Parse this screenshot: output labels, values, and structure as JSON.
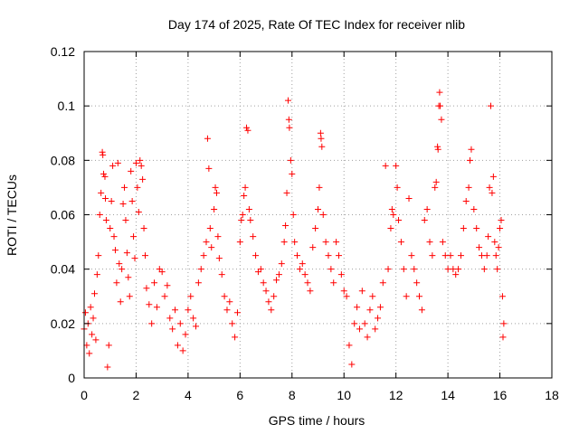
{
  "chart_data": {
    "type": "scatter",
    "title": "Day 174 of 2025, Rate Of TEC Index for receiver nlib",
    "xlabel": "GPS time / hours",
    "ylabel": "ROTI / TECUs",
    "xlim": [
      0,
      18
    ],
    "ylim": [
      0,
      0.12
    ],
    "x_ticks": [
      0,
      2,
      4,
      6,
      8,
      10,
      12,
      14,
      16,
      18
    ],
    "y_ticks": [
      0,
      0.02,
      0.04,
      0.06,
      0.08,
      0.1,
      0.12
    ],
    "x_tick_labels": [
      "0",
      "2",
      "4",
      "6",
      "8",
      "10",
      "12",
      "14",
      "16",
      "18"
    ],
    "y_tick_labels": [
      "0",
      "0.02",
      "0.04",
      "0.06",
      "0.08",
      "0.1",
      "0.12"
    ],
    "grid": true,
    "marker": "+",
    "color": "#ff0000",
    "series": [
      {
        "name": "ROTI",
        "points": [
          [
            0.0,
            0.018
          ],
          [
            0.05,
            0.024
          ],
          [
            0.1,
            0.012
          ],
          [
            0.15,
            0.02
          ],
          [
            0.2,
            0.009
          ],
          [
            0.25,
            0.026
          ],
          [
            0.3,
            0.016
          ],
          [
            0.35,
            0.022
          ],
          [
            0.4,
            0.031
          ],
          [
            0.45,
            0.014
          ],
          [
            0.5,
            0.038
          ],
          [
            0.55,
            0.045
          ],
          [
            0.6,
            0.06
          ],
          [
            0.65,
            0.068
          ],
          [
            0.7,
            0.083
          ],
          [
            0.72,
            0.082
          ],
          [
            0.75,
            0.075
          ],
          [
            0.8,
            0.074
          ],
          [
            0.82,
            0.066
          ],
          [
            0.85,
            0.058
          ],
          [
            0.9,
            0.004
          ],
          [
            0.95,
            0.012
          ],
          [
            1.0,
            0.055
          ],
          [
            1.05,
            0.065
          ],
          [
            1.1,
            0.078
          ],
          [
            1.15,
            0.052
          ],
          [
            1.2,
            0.047
          ],
          [
            1.25,
            0.035
          ],
          [
            1.3,
            0.079
          ],
          [
            1.35,
            0.042
          ],
          [
            1.4,
            0.028
          ],
          [
            1.45,
            0.04
          ],
          [
            1.5,
            0.064
          ],
          [
            1.55,
            0.07
          ],
          [
            1.6,
            0.058
          ],
          [
            1.65,
            0.046
          ],
          [
            1.7,
            0.037
          ],
          [
            1.75,
            0.03
          ],
          [
            1.8,
            0.076
          ],
          [
            1.85,
            0.065
          ],
          [
            1.9,
            0.052
          ],
          [
            1.95,
            0.044
          ],
          [
            2.0,
            0.079
          ],
          [
            2.05,
            0.07
          ],
          [
            2.1,
            0.061
          ],
          [
            2.15,
            0.08
          ],
          [
            2.2,
            0.078
          ],
          [
            2.25,
            0.073
          ],
          [
            2.3,
            0.055
          ],
          [
            2.35,
            0.045
          ],
          [
            2.4,
            0.033
          ],
          [
            2.5,
            0.027
          ],
          [
            2.6,
            0.02
          ],
          [
            2.7,
            0.035
          ],
          [
            2.8,
            0.026
          ],
          [
            2.9,
            0.04
          ],
          [
            3.0,
            0.039
          ],
          [
            3.1,
            0.03
          ],
          [
            3.2,
            0.034
          ],
          [
            3.3,
            0.022
          ],
          [
            3.4,
            0.018
          ],
          [
            3.5,
            0.025
          ],
          [
            3.6,
            0.012
          ],
          [
            3.7,
            0.02
          ],
          [
            3.8,
            0.01
          ],
          [
            3.9,
            0.016
          ],
          [
            4.0,
            0.025
          ],
          [
            4.1,
            0.03
          ],
          [
            4.2,
            0.022
          ],
          [
            4.3,
            0.019
          ],
          [
            4.4,
            0.035
          ],
          [
            4.5,
            0.04
          ],
          [
            4.6,
            0.045
          ],
          [
            4.7,
            0.05
          ],
          [
            4.75,
            0.088
          ],
          [
            4.8,
            0.077
          ],
          [
            4.85,
            0.055
          ],
          [
            4.9,
            0.048
          ],
          [
            5.0,
            0.062
          ],
          [
            5.05,
            0.07
          ],
          [
            5.1,
            0.068
          ],
          [
            5.15,
            0.052
          ],
          [
            5.2,
            0.044
          ],
          [
            5.3,
            0.038
          ],
          [
            5.4,
            0.03
          ],
          [
            5.5,
            0.025
          ],
          [
            5.6,
            0.028
          ],
          [
            5.7,
            0.02
          ],
          [
            5.8,
            0.015
          ],
          [
            5.9,
            0.024
          ],
          [
            6.0,
            0.05
          ],
          [
            6.05,
            0.058
          ],
          [
            6.1,
            0.06
          ],
          [
            6.15,
            0.067
          ],
          [
            6.2,
            0.07
          ],
          [
            6.25,
            0.092
          ],
          [
            6.3,
            0.091
          ],
          [
            6.35,
            0.062
          ],
          [
            6.4,
            0.058
          ],
          [
            6.5,
            0.052
          ],
          [
            6.6,
            0.045
          ],
          [
            6.7,
            0.039
          ],
          [
            6.8,
            0.04
          ],
          [
            6.9,
            0.035
          ],
          [
            7.0,
            0.032
          ],
          [
            7.1,
            0.028
          ],
          [
            7.2,
            0.025
          ],
          [
            7.3,
            0.03
          ],
          [
            7.4,
            0.036
          ],
          [
            7.5,
            0.038
          ],
          [
            7.6,
            0.042
          ],
          [
            7.7,
            0.05
          ],
          [
            7.75,
            0.056
          ],
          [
            7.8,
            0.068
          ],
          [
            7.85,
            0.102
          ],
          [
            7.88,
            0.095
          ],
          [
            7.9,
            0.092
          ],
          [
            7.95,
            0.08
          ],
          [
            8.0,
            0.075
          ],
          [
            8.05,
            0.06
          ],
          [
            8.1,
            0.05
          ],
          [
            8.2,
            0.045
          ],
          [
            8.3,
            0.04
          ],
          [
            8.4,
            0.042
          ],
          [
            8.5,
            0.038
          ],
          [
            8.6,
            0.035
          ],
          [
            8.7,
            0.032
          ],
          [
            8.8,
            0.048
          ],
          [
            8.9,
            0.055
          ],
          [
            9.0,
            0.062
          ],
          [
            9.05,
            0.07
          ],
          [
            9.1,
            0.09
          ],
          [
            9.12,
            0.088
          ],
          [
            9.15,
            0.085
          ],
          [
            9.2,
            0.06
          ],
          [
            9.3,
            0.05
          ],
          [
            9.4,
            0.045
          ],
          [
            9.5,
            0.04
          ],
          [
            9.6,
            0.035
          ],
          [
            9.7,
            0.05
          ],
          [
            9.8,
            0.045
          ],
          [
            9.9,
            0.038
          ],
          [
            10.0,
            0.032
          ],
          [
            10.1,
            0.03
          ],
          [
            10.2,
            0.012
          ],
          [
            10.3,
            0.005
          ],
          [
            10.4,
            0.02
          ],
          [
            10.5,
            0.026
          ],
          [
            10.6,
            0.018
          ],
          [
            10.7,
            0.032
          ],
          [
            10.8,
            0.02
          ],
          [
            10.9,
            0.015
          ],
          [
            11.0,
            0.025
          ],
          [
            11.1,
            0.03
          ],
          [
            11.2,
            0.018
          ],
          [
            11.3,
            0.022
          ],
          [
            11.4,
            0.026
          ],
          [
            11.5,
            0.035
          ],
          [
            11.6,
            0.078
          ],
          [
            11.7,
            0.04
          ],
          [
            11.8,
            0.055
          ],
          [
            11.85,
            0.062
          ],
          [
            11.9,
            0.06
          ],
          [
            12.0,
            0.078
          ],
          [
            12.05,
            0.07
          ],
          [
            12.1,
            0.058
          ],
          [
            12.2,
            0.05
          ],
          [
            12.3,
            0.04
          ],
          [
            12.4,
            0.03
          ],
          [
            12.5,
            0.066
          ],
          [
            12.6,
            0.045
          ],
          [
            12.7,
            0.04
          ],
          [
            12.8,
            0.035
          ],
          [
            12.9,
            0.03
          ],
          [
            13.0,
            0.025
          ],
          [
            13.1,
            0.058
          ],
          [
            13.2,
            0.062
          ],
          [
            13.3,
            0.05
          ],
          [
            13.4,
            0.045
          ],
          [
            13.5,
            0.07
          ],
          [
            13.55,
            0.072
          ],
          [
            13.6,
            0.085
          ],
          [
            13.62,
            0.084
          ],
          [
            13.65,
            0.1
          ],
          [
            13.68,
            0.105
          ],
          [
            13.7,
            0.1
          ],
          [
            13.75,
            0.095
          ],
          [
            13.8,
            0.05
          ],
          [
            13.9,
            0.045
          ],
          [
            14.0,
            0.04
          ],
          [
            14.1,
            0.045
          ],
          [
            14.2,
            0.04
          ],
          [
            14.3,
            0.038
          ],
          [
            14.4,
            0.04
          ],
          [
            14.5,
            0.045
          ],
          [
            14.6,
            0.055
          ],
          [
            14.7,
            0.065
          ],
          [
            14.8,
            0.07
          ],
          [
            14.85,
            0.08
          ],
          [
            14.9,
            0.084
          ],
          [
            15.0,
            0.062
          ],
          [
            15.1,
            0.055
          ],
          [
            15.2,
            0.048
          ],
          [
            15.3,
            0.045
          ],
          [
            15.4,
            0.04
          ],
          [
            15.5,
            0.045
          ],
          [
            15.55,
            0.052
          ],
          [
            15.6,
            0.07
          ],
          [
            15.65,
            0.1
          ],
          [
            15.7,
            0.068
          ],
          [
            15.75,
            0.074
          ],
          [
            15.8,
            0.05
          ],
          [
            15.85,
            0.045
          ],
          [
            15.9,
            0.04
          ],
          [
            15.95,
            0.048
          ],
          [
            16.0,
            0.055
          ],
          [
            16.05,
            0.058
          ],
          [
            16.1,
            0.03
          ],
          [
            16.12,
            0.015
          ],
          [
            16.15,
            0.02
          ]
        ]
      }
    ]
  }
}
